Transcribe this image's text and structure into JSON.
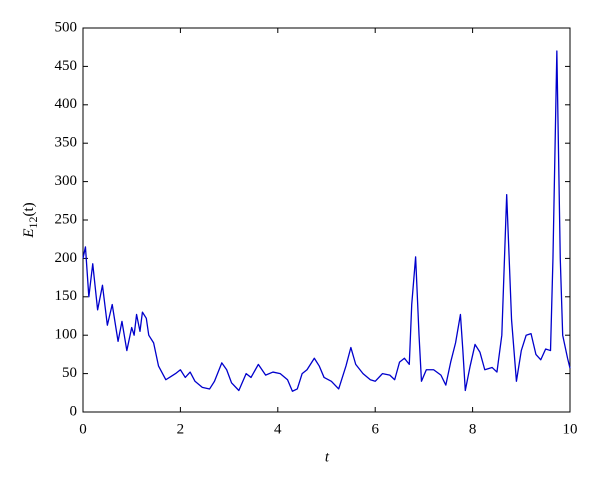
{
  "chart_data": {
    "type": "line",
    "xlabel": "t",
    "ylabel": {
      "base": "E",
      "sub": "12",
      "arg": "(t)"
    },
    "color": "#0000cc",
    "xlim": [
      0,
      10
    ],
    "xticks": [
      0,
      2,
      4,
      6,
      8,
      10
    ],
    "ylim": [
      0,
      500
    ],
    "yticks": [
      0,
      50,
      100,
      150,
      200,
      250,
      300,
      350,
      400,
      450,
      500
    ],
    "x": [
      0,
      0.05,
      0.12,
      0.2,
      0.3,
      0.4,
      0.5,
      0.6,
      0.72,
      0.8,
      0.9,
      1.0,
      1.05,
      1.1,
      1.17,
      1.22,
      1.3,
      1.35,
      1.45,
      1.55,
      1.7,
      1.8,
      1.9,
      2.0,
      2.1,
      2.2,
      2.3,
      2.45,
      2.6,
      2.7,
      2.85,
      2.95,
      3.05,
      3.2,
      3.35,
      3.45,
      3.6,
      3.75,
      3.9,
      4.05,
      4.2,
      4.3,
      4.4,
      4.5,
      4.6,
      4.75,
      4.85,
      4.95,
      5.1,
      5.25,
      5.4,
      5.5,
      5.6,
      5.75,
      5.9,
      6.0,
      6.15,
      6.3,
      6.4,
      6.5,
      6.6,
      6.7,
      6.75,
      6.83,
      6.9,
      6.95,
      7.05,
      7.2,
      7.35,
      7.45,
      7.55,
      7.65,
      7.75,
      7.8,
      7.85,
      7.95,
      8.05,
      8.15,
      8.25,
      8.4,
      8.5,
      8.6,
      8.7,
      8.8,
      8.9,
      9.0,
      9.1,
      9.2,
      9.3,
      9.4,
      9.5,
      9.6,
      9.65,
      9.73,
      9.8,
      9.85,
      9.95,
      10
    ],
    "values": [
      200,
      215,
      150,
      193,
      133,
      165,
      113,
      140,
      92,
      118,
      80,
      110,
      100,
      127,
      105,
      130,
      122,
      100,
      90,
      60,
      42,
      46,
      50,
      55,
      45,
      52,
      40,
      32,
      30,
      40,
      64,
      55,
      38,
      28,
      50,
      45,
      62,
      48,
      52,
      50,
      42,
      27,
      30,
      50,
      55,
      70,
      60,
      45,
      40,
      30,
      60,
      84,
      62,
      50,
      42,
      40,
      50,
      48,
      42,
      65,
      70,
      62,
      140,
      202,
      100,
      40,
      55,
      55,
      48,
      35,
      65,
      90,
      127,
      80,
      28,
      60,
      88,
      78,
      55,
      58,
      52,
      100,
      283,
      120,
      40,
      80,
      100,
      102,
      75,
      68,
      82,
      80,
      200,
      470,
      200,
      100,
      70,
      57
    ]
  }
}
